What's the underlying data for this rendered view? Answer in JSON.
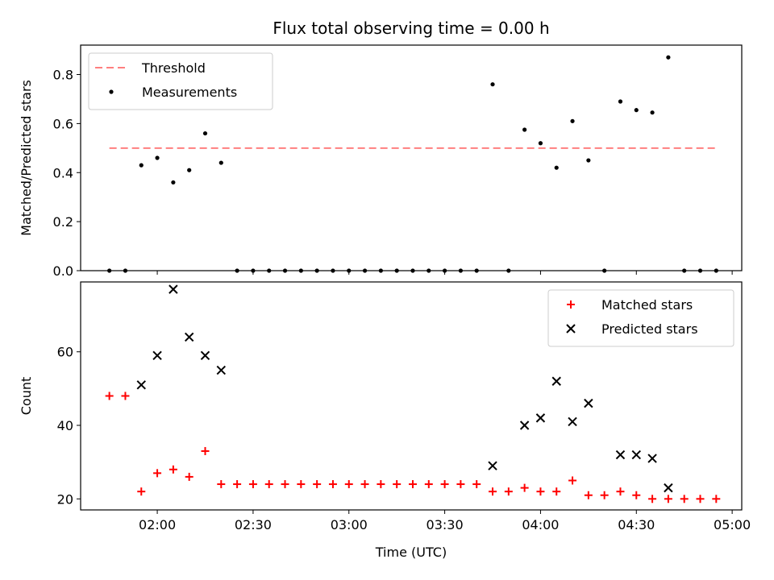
{
  "chart_data": {
    "title": "Flux total observing time = 0.00 h",
    "xlabel": "Time (UTC)",
    "x_ticks": [
      "02:00",
      "02:30",
      "03:00",
      "03:30",
      "04:00",
      "04:30",
      "05:00"
    ],
    "x_tick_minutes": [
      120,
      150,
      180,
      210,
      240,
      270,
      300
    ],
    "xlim_minutes": [
      96,
      303
    ],
    "times": [
      "01:45",
      "01:50",
      "01:55",
      "02:00",
      "02:05",
      "02:10",
      "02:15",
      "02:20",
      "02:25",
      "02:30",
      "02:35",
      "02:40",
      "02:45",
      "02:50",
      "02:55",
      "03:00",
      "03:05",
      "03:10",
      "03:15",
      "03:20",
      "03:25",
      "03:30",
      "03:35",
      "03:40",
      "03:45",
      "03:50",
      "03:55",
      "04:00",
      "04:05",
      "04:10",
      "04:15",
      "04:20",
      "04:25",
      "04:30",
      "04:35",
      "04:40",
      "04:45",
      "04:50",
      "04:55"
    ],
    "charts": [
      {
        "type": "scatter",
        "ylabel": "Matched/Predicted stars",
        "ylim": [
          0,
          0.92
        ],
        "y_ticks": [
          "0.0",
          "0.2",
          "0.4",
          "0.6",
          "0.8"
        ],
        "y_tick_values": [
          0,
          0.2,
          0.4,
          0.6,
          0.8
        ],
        "legend_position": "top-left",
        "threshold": {
          "name": "Threshold",
          "value": 0.5,
          "x_start": "01:45",
          "x_end": "04:55",
          "color": "#ff7f7f"
        },
        "series": [
          {
            "name": "Measurements",
            "color": "#000000",
            "marker": "dot",
            "values": [
              0,
              0,
              0.43,
              0.46,
              0.36,
              0.41,
              0.56,
              0.44,
              0,
              0,
              0,
              0,
              0,
              0,
              0,
              0,
              0,
              0,
              0,
              0,
              0,
              0,
              0,
              0,
              0.76,
              0,
              0.575,
              0.52,
              0.42,
              0.61,
              0.45,
              0,
              0.69,
              0.655,
              0.645,
              0.87,
              0,
              0,
              0
            ]
          }
        ]
      },
      {
        "type": "scatter",
        "ylabel": "Count",
        "ylim": [
          17,
          79
        ],
        "y_ticks": [
          "20",
          "40",
          "60"
        ],
        "y_tick_values": [
          20,
          40,
          60
        ],
        "legend_position": "top-right",
        "series": [
          {
            "name": "Matched stars",
            "color": "#ff0000",
            "marker": "plus",
            "values": [
              48,
              48,
              22,
              27,
              28,
              26,
              33,
              24,
              24,
              24,
              24,
              24,
              24,
              24,
              24,
              24,
              24,
              24,
              24,
              24,
              24,
              24,
              24,
              24,
              22,
              22,
              23,
              22,
              22,
              25,
              21,
              21,
              22,
              21,
              20,
              20,
              20,
              20,
              20
            ]
          },
          {
            "name": "Predicted stars",
            "color": "#000000",
            "marker": "x",
            "values": [
              null,
              null,
              51,
              59,
              77,
              64,
              59,
              55,
              null,
              null,
              null,
              null,
              null,
              null,
              null,
              null,
              null,
              null,
              null,
              null,
              null,
              null,
              null,
              null,
              29,
              null,
              40,
              42,
              52,
              41,
              46,
              null,
              32,
              32,
              31,
              23,
              null,
              null,
              null
            ]
          }
        ]
      }
    ]
  }
}
